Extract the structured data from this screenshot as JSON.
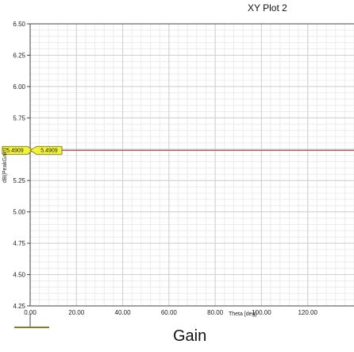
{
  "caption": "Gain",
  "chart_data": {
    "type": "line",
    "title": "XY Plot 2",
    "xlabel": "Theta [deg]",
    "ylabel": "dB(PeakGain)",
    "xlim": [
      0,
      140
    ],
    "ylim": [
      4.25,
      6.5
    ],
    "x_ticks": [
      0,
      20,
      40,
      60,
      80,
      100,
      120
    ],
    "x_tick_labels": [
      "0.00",
      "20.00",
      "40.00",
      "60.00",
      "80.00",
      "100.00",
      "120.00"
    ],
    "y_ticks": [
      4.25,
      4.5,
      4.75,
      5.0,
      5.25,
      5.5,
      5.75,
      6.0,
      6.25,
      6.5
    ],
    "y_tick_labels": [
      "4.25",
      "4.50",
      "4.75",
      "5.00",
      "5.25",
      "5.50",
      "5.75",
      "6.00",
      "6.25",
      "6.50"
    ],
    "grid": true,
    "series": [
      {
        "x": [
          0,
          140
        ],
        "y": [
          5.4909,
          5.4909
        ],
        "color": "#a05050"
      }
    ],
    "markers": [
      {
        "label": "5.4909",
        "value": 5.4909,
        "position": "left-axis"
      },
      {
        "label": "5.4909",
        "value": 5.4909,
        "position": "trace-start"
      }
    ],
    "colors": {
      "marker_fill": "#f2f23a",
      "marker_stroke": "#6a6a00",
      "grid": "#cfcfcf",
      "minor_grid": "#ececec"
    }
  }
}
